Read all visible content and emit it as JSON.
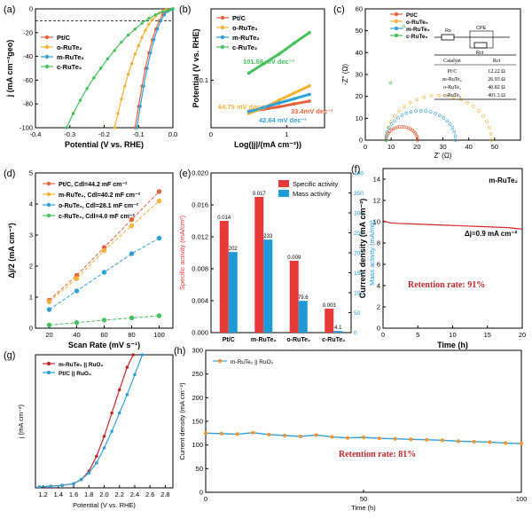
{
  "chart_data": [
    {
      "panel_label": "(a)",
      "type": "line",
      "xlabel": "Potential (V vs. RHE)",
      "ylabel": "j (mA cm⁻²geo)",
      "xlim": [
        -0.4,
        0.0
      ],
      "ylim": [
        -100,
        0
      ],
      "xticks": [
        "-0.4",
        "-0.3",
        "-0.2",
        "-0.1",
        "0.0"
      ],
      "yticks": [
        "-100",
        "-80",
        "-60",
        "-40",
        "-20",
        "0"
      ],
      "legend_position": "top-left",
      "series": [
        {
          "name": "Pt/C",
          "color": "#e8613c",
          "x": [
            -0.11,
            -0.1,
            -0.09,
            -0.08,
            -0.07,
            -0.06,
            -0.05,
            -0.04,
            -0.03,
            -0.02,
            -0.01,
            0.0
          ],
          "y": [
            -100,
            -82,
            -65,
            -50,
            -37,
            -26,
            -17,
            -10,
            -5,
            -2,
            -0.5,
            0
          ]
        },
        {
          "name": "o-RuTe₂",
          "color": "#f5b335",
          "x": [
            -0.17,
            -0.16,
            -0.15,
            -0.14,
            -0.13,
            -0.12,
            -0.11,
            -0.1,
            -0.09,
            -0.08,
            -0.07,
            -0.06,
            -0.05,
            -0.04,
            -0.03,
            -0.02,
            0.0
          ],
          "y": [
            -100,
            -88,
            -76,
            -65,
            -55,
            -46,
            -38,
            -31,
            -24,
            -18,
            -13,
            -9,
            -6,
            -3.5,
            -2,
            -1,
            0
          ]
        },
        {
          "name": "m-RuTe₂",
          "color": "#2fa1d8",
          "x": [
            -0.105,
            -0.095,
            -0.085,
            -0.075,
            -0.065,
            -0.055,
            -0.045,
            -0.035,
            -0.025,
            -0.015,
            -0.005,
            0.0
          ],
          "y": [
            -100,
            -82,
            -65,
            -50,
            -37,
            -26,
            -17,
            -10,
            -5,
            -2,
            -0.5,
            0
          ]
        },
        {
          "name": "c-RuTe₂",
          "color": "#44c15a",
          "x": [
            -0.31,
            -0.29,
            -0.27,
            -0.25,
            -0.23,
            -0.21,
            -0.19,
            -0.17,
            -0.15,
            -0.13,
            -0.11,
            -0.09,
            -0.07,
            -0.05,
            -0.03,
            -0.01,
            0.0
          ],
          "y": [
            -100,
            -88,
            -77,
            -67,
            -58,
            -50,
            -42,
            -35,
            -28,
            -22,
            -17,
            -12,
            -8,
            -5,
            -2.5,
            -1,
            0
          ]
        }
      ]
    },
    {
      "panel_label": "(b)",
      "type": "line",
      "xlabel": "Log(|j|/(mA cm⁻²))",
      "ylabel": "Potential (V vs. RHE)",
      "xlim": [
        0.0,
        1.5
      ],
      "ylim": [
        0.0,
        0.25
      ],
      "xticks": [
        "0",
        "1"
      ],
      "yticks": [
        "0.1"
      ],
      "legend_position": "top-left",
      "annotations": [
        "101.68 mV dec⁻¹",
        "64.79 mV dec⁻¹",
        "33.4mV dec⁻¹",
        "42.64 mV dec⁻¹"
      ],
      "series": [
        {
          "name": "Pt/C",
          "color": "#e8613c",
          "x": [
            0.5,
            0.7,
            0.9,
            1.1,
            1.3
          ],
          "y": [
            0.035,
            0.039,
            0.044,
            0.05,
            0.056
          ]
        },
        {
          "name": "o-RuTe₂",
          "color": "#f5b335",
          "x": [
            0.5,
            0.7,
            0.9,
            1.1,
            1.3
          ],
          "y": [
            0.03,
            0.042,
            0.058,
            0.073,
            0.088
          ]
        },
        {
          "name": "m-RuTe₂",
          "color": "#2fa1d8",
          "x": [
            0.5,
            0.7,
            0.9,
            1.1,
            1.3
          ],
          "y": [
            0.034,
            0.043,
            0.052,
            0.061,
            0.07
          ]
        },
        {
          "name": "c-RuTe₂",
          "color": "#44c15a",
          "x": [
            0.5,
            0.7,
            0.9,
            1.1,
            1.3
          ],
          "y": [
            0.115,
            0.135,
            0.155,
            0.178,
            0.2
          ]
        }
      ]
    },
    {
      "panel_label": "(c)",
      "type": "scatter",
      "xlabel": "Z' (Ω)",
      "ylabel": "-Z'' (Ω)",
      "xlim": [
        0,
        60
      ],
      "ylim": [
        0,
        60
      ],
      "xticks": [
        "0",
        "10",
        "20",
        "30",
        "40",
        "50"
      ],
      "yticks": [
        "0",
        "10",
        "20",
        "30",
        "40",
        "50",
        "60"
      ],
      "legend_position": "top-left",
      "circuit_labels": [
        "Rs",
        "CPE",
        "Rct"
      ],
      "table": {
        "headers": [
          "Catalyst",
          "Rct"
        ],
        "rows": [
          [
            "Pt/C",
            "12.22 Ω"
          ],
          [
            "m-RuTe₂",
            "26.93 Ω"
          ],
          [
            "o-RuTe₂",
            "40.82 Ω"
          ],
          [
            "c-RuTe₂",
            "401.3 Ω"
          ]
        ]
      },
      "series": [
        {
          "name": "Pt/C",
          "color": "#e8613c",
          "rs": 8,
          "rct": 12.22
        },
        {
          "name": "o-RuTe₂",
          "color": "#f5b335",
          "rs": 8,
          "rct": 40.82
        },
        {
          "name": "m-RuTe₂",
          "color": "#2fa1d8",
          "rs": 8,
          "rct": 26.93
        },
        {
          "name": "c-RuTe₂",
          "color": "#44c15a",
          "rs": 8,
          "rct": 401.3
        }
      ]
    },
    {
      "panel_label": "(d)",
      "type": "scatter",
      "xlabel": "Scan Rate (mV s⁻¹)",
      "ylabel": "Δj/2 (mA cm⁻²)",
      "xlim": [
        10,
        110
      ],
      "ylim": [
        0,
        5
      ],
      "xticks": [
        "20",
        "40",
        "60",
        "80",
        "100"
      ],
      "yticks": [
        "0",
        "1",
        "2",
        "3",
        "4",
        "5"
      ],
      "categories": [
        20,
        40,
        60,
        80,
        100
      ],
      "legend_position": "top-left",
      "series": [
        {
          "name": "Pt/C",
          "label": "Cdl=44.2 mF cm⁻²",
          "color": "#e8613c",
          "values": [
            0.9,
            1.7,
            2.6,
            3.5,
            4.4
          ]
        },
        {
          "name": "m-RuTe₂",
          "label": "Cdl=40.2 mF cm⁻²",
          "color": "#f5b335",
          "values": [
            0.85,
            1.6,
            2.5,
            3.3,
            4.1
          ]
        },
        {
          "name": "o-RuTe₂",
          "label": "Cdl=28.1 mF cm⁻²",
          "color": "#2fa1d8",
          "values": [
            0.6,
            1.2,
            1.8,
            2.4,
            2.9
          ]
        },
        {
          "name": "c-RuTe₂",
          "label": "Cdl=4.0 mF cm⁻²",
          "color": "#44c15a",
          "values": [
            0.1,
            0.18,
            0.26,
            0.33,
            0.4
          ]
        }
      ]
    },
    {
      "panel_label": "(e)",
      "type": "bar",
      "ylabel": "Specific activity (mA/cm²)",
      "ylabel_right": "Mass activity (mA/mg)",
      "categories": [
        "Pt/C",
        "m-RuTe₂",
        "o-RuTe₂",
        "c-RuTe₂"
      ],
      "ylim": [
        0,
        0.02
      ],
      "ylim_right": [
        0,
        400
      ],
      "yticks": [
        "0.000",
        "0.004",
        "0.008",
        "0.012",
        "0.016",
        "0.020"
      ],
      "yticks_right": [
        "0",
        "50",
        "100",
        "150",
        "200",
        "250",
        "300",
        "350",
        "400"
      ],
      "legend_position": "top-right",
      "series": [
        {
          "name": "Specific activity",
          "color": "#e8393a",
          "values": [
            0.014,
            0.017,
            0.009,
            0.003
          ],
          "labels": [
            "0.014",
            "0.017",
            "0.009",
            "0.003"
          ]
        },
        {
          "name": "Mass activity",
          "color": "#1e9ad6",
          "values": [
            202,
            233,
            79.6,
            4.1
          ],
          "labels": [
            "202",
            "233",
            "79.6",
            "4.1"
          ]
        }
      ]
    },
    {
      "panel_label": "(f)",
      "type": "line",
      "xlabel": "Time (h)",
      "ylabel": "Current density (mA cm⁻²)",
      "xlim": [
        0,
        20
      ],
      "ylim": [
        0,
        15
      ],
      "xticks": [
        "0",
        "5",
        "10",
        "15",
        "20"
      ],
      "yticks": [
        "0",
        "2",
        "4",
        "6",
        "8",
        "10",
        "12",
        "14"
      ],
      "annotations": [
        "m-RuTe₂",
        "Δj=0.9 mA cm⁻²",
        "Retention rate: 91%"
      ],
      "series": [
        {
          "color": "#d62728",
          "x": [
            0,
            1,
            2,
            4,
            6,
            8,
            10,
            12,
            14,
            16,
            18,
            20
          ],
          "y": [
            10.1,
            9.9,
            9.85,
            9.8,
            9.75,
            9.7,
            9.65,
            9.6,
            9.55,
            9.5,
            9.45,
            9.3
          ]
        }
      ]
    },
    {
      "panel_label": "(g)",
      "type": "line",
      "xlabel": "Potential (V vs. RHE)",
      "ylabel": "j (mA cm⁻²)",
      "xlim": [
        1.1,
        2.9
      ],
      "ylim": [
        0,
        160
      ],
      "xticks": [
        "1.2",
        "1.4",
        "1.6",
        "1.8",
        "2.0",
        "2.2",
        "2.4",
        "2.6",
        "2.8"
      ],
      "legend_position": "top-left",
      "series": [
        {
          "name": "m-RuTe₂ || RuO₂",
          "color": "#c0282d",
          "x": [
            1.15,
            1.3,
            1.45,
            1.6,
            1.7,
            1.8,
            1.9,
            2.0,
            2.1,
            2.2,
            2.3,
            2.38
          ],
          "y": [
            1,
            2,
            3,
            5,
            10,
            20,
            38,
            62,
            90,
            118,
            145,
            160
          ]
        },
        {
          "name": "Pt/C || RuO₂",
          "color": "#2fa1d8",
          "x": [
            1.15,
            1.3,
            1.45,
            1.6,
            1.7,
            1.8,
            1.9,
            2.0,
            2.1,
            2.2,
            2.3,
            2.4,
            2.5
          ],
          "y": [
            1,
            2,
            3,
            5,
            10,
            18,
            30,
            48,
            68,
            90,
            112,
            136,
            160
          ]
        }
      ]
    },
    {
      "panel_label": "(h)",
      "type": "line",
      "xlabel": "Time (h)",
      "ylabel": "Current density (mA cm⁻²)",
      "xlim": [
        0,
        100
      ],
      "ylim": [
        0,
        300
      ],
      "xticks": [
        "0",
        "50",
        "100"
      ],
      "yticks": [
        "0",
        "50",
        "100",
        "150",
        "200",
        "250",
        "300"
      ],
      "legend_position": "top-left",
      "annotations": [
        "Retention rate: 81%"
      ],
      "series": [
        {
          "name": "m-RuTe₂ || RuO₂",
          "color": "#2fa1d8",
          "marker_color": "#f29432",
          "x": [
            0,
            5,
            10,
            15,
            20,
            25,
            30,
            35,
            40,
            45,
            50,
            55,
            60,
            65,
            70,
            75,
            80,
            85,
            90,
            95,
            100
          ],
          "y": [
            125,
            124,
            123,
            126,
            122,
            120,
            118,
            121,
            117,
            115,
            116,
            114,
            113,
            112,
            111,
            110,
            108,
            107,
            106,
            104,
            103
          ]
        }
      ]
    }
  ]
}
